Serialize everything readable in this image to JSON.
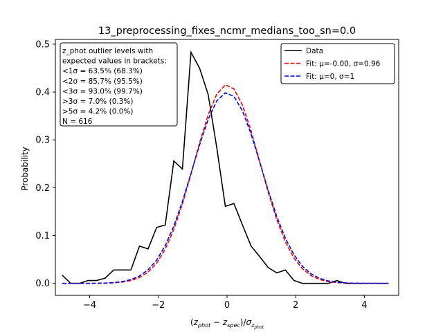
{
  "chart_data": {
    "type": "line",
    "title": "13_preprocessing_fixes_ncmr_medians_too_sn=0.0",
    "xlabel": "(z_phot − z_spec)/σ_z_phot",
    "ylabel": "Probability",
    "xlim": [
      -5.0,
      5.0
    ],
    "ylim": [
      -0.025,
      0.51
    ],
    "xticks": [
      -4,
      -2,
      0,
      2,
      4
    ],
    "yticks": [
      0.0,
      0.1,
      0.2,
      0.3,
      0.4,
      0.5
    ],
    "xtick_labels": [
      "−4",
      "−2",
      "0",
      "2",
      "4"
    ],
    "ytick_labels": [
      "0.0",
      "0.1",
      "0.2",
      "0.3",
      "0.4",
      "0.5"
    ],
    "grid": false,
    "legend_position": "top-right",
    "series": [
      {
        "name": "Data",
        "color": "#000000",
        "dash": "solid",
        "x": [
          -4.8,
          -4.55,
          -4.3,
          -4.05,
          -3.8,
          -3.55,
          -3.3,
          -3.05,
          -2.8,
          -2.55,
          -2.3,
          -2.05,
          -1.8,
          -1.55,
          -1.3,
          -1.05,
          -0.8,
          -0.55,
          -0.3,
          -0.05,
          0.2,
          0.45,
          0.7,
          0.95,
          1.2,
          1.45,
          1.7,
          1.95,
          2.2,
          2.45,
          2.7,
          2.95,
          3.2,
          3.45,
          3.7,
          3.95,
          4.2,
          4.45,
          4.7
        ],
        "values": [
          0.017,
          0.0,
          0.0,
          0.006,
          0.006,
          0.011,
          0.028,
          0.028,
          0.028,
          0.078,
          0.072,
          0.117,
          0.122,
          0.256,
          0.239,
          0.483,
          0.45,
          0.395,
          0.284,
          0.161,
          0.167,
          0.122,
          0.078,
          0.056,
          0.033,
          0.022,
          0.028,
          0.006,
          0.0,
          0.0,
          0.0,
          0.0,
          0.006,
          0.0,
          0.0,
          0.0,
          0.0,
          0.0,
          0.0
        ]
      },
      {
        "name": "Fit: μ=-0.00, σ=0.96",
        "color": "#ff0000",
        "dash": "dashed",
        "gauss": {
          "mu": 0.0,
          "sigma": 0.96
        },
        "x_range": [
          -4.8,
          4.7
        ]
      },
      {
        "name": "Fit: μ=0, σ=1",
        "color": "#0000ff",
        "dash": "dashed",
        "gauss": {
          "mu": 0.0,
          "sigma": 1.0
        },
        "x_range": [
          -4.8,
          4.7
        ]
      }
    ],
    "annotation": {
      "lines": [
        "z_phot outlier levels with",
        " expected values in brackets:",
        " <1σ = 63.5% (68.3%)",
        " <2σ = 85.7% (95.5%)",
        " <3σ = 93.0% (99.7%)",
        " >3σ = 7.0% (0.3%)",
        " >5σ = 4.2% (0.0%)",
        "N = 616"
      ]
    }
  }
}
